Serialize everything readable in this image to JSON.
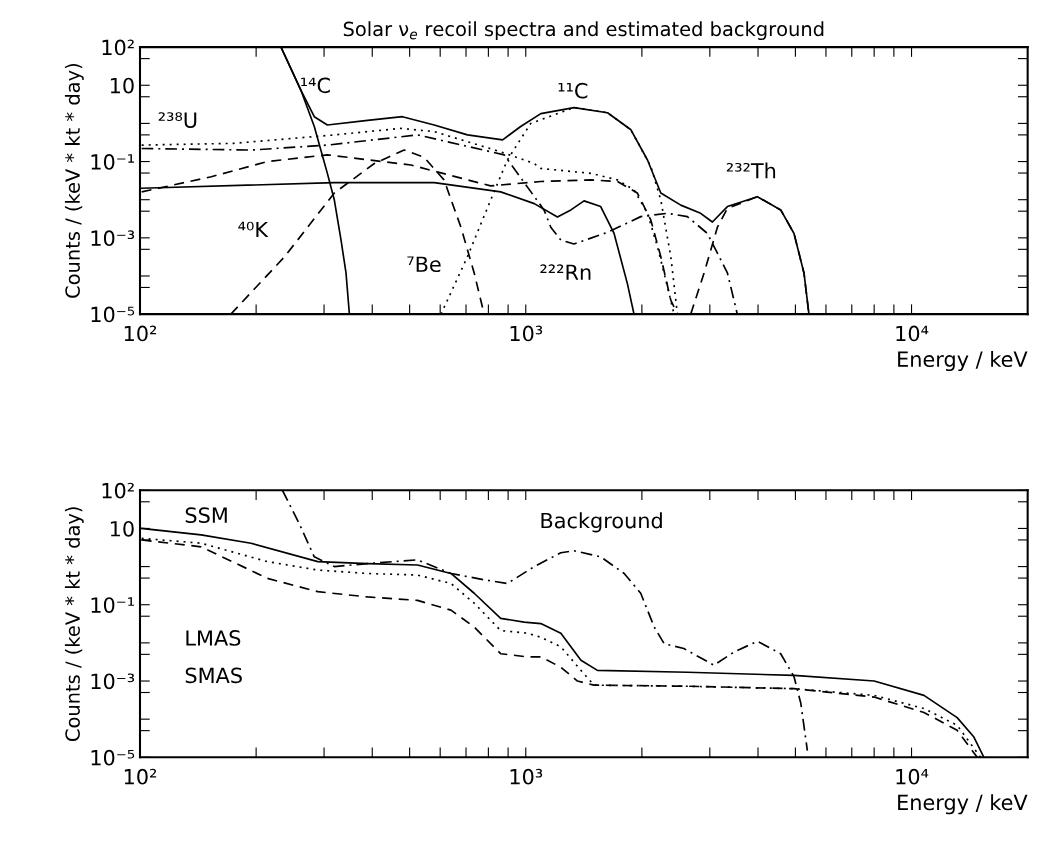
{
  "chart_data": [
    {
      "type": "line",
      "title": "Solar ν$_{e}$ recoil spectra and estimated background",
      "xlabel": "Energy / keV",
      "ylabel": "Counts / (keV * kt * day)",
      "log": "xy",
      "xlim": [
        100,
        20000
      ],
      "ylim": [
        1e-05,
        100
      ],
      "xticks": [
        {
          "value": 100,
          "label": "10²"
        },
        {
          "value": 200,
          "label": null
        },
        {
          "value": 300,
          "label": null
        },
        {
          "value": 400,
          "label": null
        },
        {
          "value": 500,
          "label": null
        },
        {
          "value": 600,
          "label": null
        },
        {
          "value": 700,
          "label": null
        },
        {
          "value": 800,
          "label": null
        },
        {
          "value": 900,
          "label": null
        },
        {
          "value": 1000,
          "label": "10³"
        },
        {
          "value": 2000,
          "label": null
        },
        {
          "value": 3000,
          "label": null
        },
        {
          "value": 4000,
          "label": null
        },
        {
          "value": 5000,
          "label": null
        },
        {
          "value": 6000,
          "label": null
        },
        {
          "value": 7000,
          "label": null
        },
        {
          "value": 8000,
          "label": null
        },
        {
          "value": 9000,
          "label": null
        },
        {
          "value": 10000,
          "label": "10⁴"
        }
      ],
      "yticks": [
        {
          "value": 1e-05,
          "label": "10⁻⁵"
        },
        {
          "value": 5e-05,
          "label": null
        },
        {
          "value": 0.0001,
          "label": null
        },
        {
          "value": 0.0005,
          "label": null
        },
        {
          "value": 0.001,
          "label": "10⁻³"
        },
        {
          "value": 0.005,
          "label": null
        },
        {
          "value": 0.01,
          "label": null
        },
        {
          "value": 0.05,
          "label": null
        },
        {
          "value": 0.1,
          "label": "10⁻¹"
        },
        {
          "value": 0.5,
          "label": null
        },
        {
          "value": 1,
          "label": null
        },
        {
          "value": 5,
          "label": null
        },
        {
          "value": 10,
          "label": "10"
        },
        {
          "value": 50,
          "label": null
        },
        {
          "value": 100,
          "label": "10²"
        }
      ],
      "series": [
        {
          "color": "#000000",
          "line_style": "solid",
          "x": [
            232,
            261,
            283,
            306,
            319,
            332,
            342,
            349
          ],
          "values": [
            100,
            7.6,
            0.83,
            0.049,
            0.0098,
            0.00087,
            0.00012,
            1e-05
          ]
        },
        {
          "color": "#000000",
          "line_style": "solid",
          "x": [
            232,
            261,
            283,
            306,
            389,
            479,
            579,
            706,
            871,
            970,
            1094,
            1334,
            1629,
            1873,
            2068,
            2239,
            2522,
            2840,
            3046,
            3332,
            3985,
            4580,
            4958,
            5262,
            5420
          ],
          "values": [
            100,
            7.6,
            1.5,
            0.91,
            1.2,
            1.5,
            0.91,
            0.5,
            0.37,
            0.83,
            1.8,
            2.6,
            1.9,
            0.68,
            0.11,
            0.015,
            0.0072,
            0.0044,
            0.0026,
            0.0066,
            0.012,
            0.0054,
            0.0013,
            0.00012,
            1e-05
          ]
        },
        {
          "color": "#000000",
          "line_style": "dotted",
          "x": [
            603,
            706,
            811,
            896,
            1030,
            1334,
            1629,
            1873,
            2110,
            2239,
            2377,
            2472
          ],
          "values": [
            1e-05,
            0.00032,
            0.0098,
            0.11,
            1.0,
            2.6,
            1.9,
            0.68,
            0.074,
            0.0098,
            0.00032,
            1e-05
          ]
        },
        {
          "color": "#000000",
          "line_style": "dotted",
          "x": [
            101,
            175,
            319,
            474,
            579,
            861,
            1052,
            1094,
            1476,
            1729,
            1908,
            2068,
            2194,
            2330,
            2423
          ],
          "values": [
            0.27,
            0.3,
            0.5,
            0.74,
            0.61,
            0.18,
            0.089,
            0.066,
            0.049,
            0.033,
            0.018,
            0.0044,
            0.00059,
            5.2e-05,
            1e-05
          ]
        },
        {
          "color": "#000000",
          "line_style": "dashdot",
          "x": [
            101,
            194,
            306,
            524,
            706,
            879,
            1115,
            1161,
            1233,
            1334,
            1629,
            1986,
            2330,
            2624,
            2958,
            3332,
            3535
          ],
          "values": [
            0.22,
            0.2,
            0.27,
            0.5,
            0.25,
            0.15,
            0.0054,
            0.0019,
            0.00087,
            0.00069,
            0.0014,
            0.0036,
            0.0044,
            0.0036,
            0.0013,
            0.00012,
            1e-05
          ]
        },
        {
          "color": "#000000",
          "line_style": "dashed",
          "x": [
            101,
            153,
            214,
            306,
            504,
            811,
            1094,
            1476,
            1729,
            1946,
            2110,
            2239,
            2377,
            2472
          ],
          "values": [
            0.016,
            0.04,
            0.1,
            0.15,
            0.081,
            0.023,
            0.03,
            0.033,
            0.03,
            0.015,
            0.0029,
            0.00032,
            2.3e-05,
            1e-05
          ]
        },
        {
          "color": "#000000",
          "line_style": "solid",
          "x": [
            101,
            319,
            579,
            861,
            1052,
            1208,
            1309,
            1416,
            1564,
            1694,
            1834,
            1908
          ],
          "values": [
            0.02,
            0.028,
            0.028,
            0.016,
            0.0079,
            0.0035,
            0.0054,
            0.0093,
            0.0066,
            0.0013,
            6.3e-05,
            1e-05
          ]
        },
        {
          "color": "#000000",
          "line_style": "dashed",
          "x": [
            172,
            237,
            319,
            405,
            484,
            545,
            614,
            679,
            735,
            780
          ],
          "values": [
            1e-05,
            0.00032,
            0.015,
            0.089,
            0.2,
            0.13,
            0.033,
            0.0019,
            0.00012,
            1e-05
          ]
        },
        {
          "color": "#000000",
          "line_style": "dashed",
          "x": [
            2677,
            2899,
            3139,
            3332,
            3985,
            4580,
            4958,
            5262,
            5420
          ],
          "values": [
            1e-05,
            0.00012,
            0.0019,
            0.0059,
            0.012,
            0.0054,
            0.0013,
            0.00012,
            1e-05
          ]
        }
      ],
      "annotations": [
        "¹⁴C",
        "²³⁸U",
        "⁴⁰K",
        "⁷Be",
        "²²²Rn",
        "¹¹C",
        "²³²Th"
      ]
    },
    {
      "type": "line",
      "xlabel": "Energy / keV",
      "ylabel": "Counts / (keV * kt * day)",
      "log": "xy",
      "xlim": [
        100,
        20000
      ],
      "ylim": [
        1e-05,
        100
      ],
      "xticks": [
        {
          "value": 100,
          "label": "10²"
        },
        {
          "value": 200,
          "label": null
        },
        {
          "value": 300,
          "label": null
        },
        {
          "value": 400,
          "label": null
        },
        {
          "value": 500,
          "label": null
        },
        {
          "value": 600,
          "label": null
        },
        {
          "value": 700,
          "label": null
        },
        {
          "value": 800,
          "label": null
        },
        {
          "value": 900,
          "label": null
        },
        {
          "value": 1000,
          "label": "10³"
        },
        {
          "value": 2000,
          "label": null
        },
        {
          "value": 3000,
          "label": null
        },
        {
          "value": 4000,
          "label": null
        },
        {
          "value": 5000,
          "label": null
        },
        {
          "value": 6000,
          "label": null
        },
        {
          "value": 7000,
          "label": null
        },
        {
          "value": 8000,
          "label": null
        },
        {
          "value": 9000,
          "label": null
        },
        {
          "value": 10000,
          "label": "10⁴"
        }
      ],
      "yticks": [
        {
          "value": 1e-05,
          "label": "10⁻⁵"
        },
        {
          "value": 5e-05,
          "label": null
        },
        {
          "value": 0.0001,
          "label": null
        },
        {
          "value": 0.0005,
          "label": null
        },
        {
          "value": 0.001,
          "label": "10⁻³"
        },
        {
          "value": 0.005,
          "label": null
        },
        {
          "value": 0.01,
          "label": null
        },
        {
          "value": 0.05,
          "label": null
        },
        {
          "value": 0.1,
          "label": "10⁻¹"
        },
        {
          "value": 0.5,
          "label": null
        },
        {
          "value": 1,
          "label": null
        },
        {
          "value": 5,
          "label": null
        },
        {
          "value": 10,
          "label": "10"
        },
        {
          "value": 50,
          "label": null
        },
        {
          "value": 100,
          "label": "10²"
        }
      ],
      "series": [
        {
          "color": "#000000",
          "line_style": "solid",
          "x": [
            101,
            144,
            194,
            289,
            389,
            524,
            640,
            735,
            861,
            990,
            1094,
            1233,
            1390,
            1534,
            2624,
            4958,
            8000,
            10770,
            13130,
            14510,
            15400
          ],
          "values": [
            10,
            6.8,
            4.1,
            1.35,
            1.2,
            1.1,
            0.66,
            0.2,
            0.044,
            0.035,
            0.032,
            0.018,
            0.0035,
            0.0019,
            0.0017,
            0.0014,
            0.001,
            0.00042,
            0.00011,
            3.4e-05,
            1e-05
          ]
        },
        {
          "color": "#000000",
          "line_style": "dotted",
          "x": [
            101,
            144,
            214,
            289,
            389,
            524,
            640,
            735,
            861,
            1009,
            1094,
            1233,
            1390,
            1503,
            2624,
            4958,
            8000,
            10770,
            13130,
            15100
          ],
          "values": [
            5.5,
            4.1,
            1.35,
            0.81,
            0.66,
            0.6,
            0.36,
            0.11,
            0.021,
            0.018,
            0.014,
            0.0079,
            0.0019,
            0.00078,
            0.00073,
            0.00063,
            0.00042,
            0.00019,
            6.9e-05,
            1e-05
          ]
        },
        {
          "color": "#000000",
          "line_style": "dashed",
          "x": [
            101,
            144,
            214,
            289,
            389,
            524,
            640,
            735,
            861,
            1009,
            1094,
            1233,
            1361,
            1503,
            2624,
            4958,
            8000,
            10770,
            13130,
            14800
          ],
          "values": [
            5.0,
            3.3,
            0.49,
            0.22,
            0.16,
            0.13,
            0.072,
            0.026,
            0.0052,
            0.0043,
            0.0043,
            0.0023,
            0.001,
            0.00078,
            0.00073,
            0.00063,
            0.00038,
            0.00015,
            5.1e-05,
            1e-05
          ]
        },
        {
          "color": "#000000",
          "line_style": "dashdot",
          "x": [
            234,
            259,
            283,
            319,
            389,
            524,
            640,
            780,
            896,
            1052,
            1233,
            1334,
            1564,
            1799,
            1986,
            2153,
            2285,
            2569,
            3076,
            3470,
            3985,
            4580,
            4958,
            5164,
            5370
          ],
          "values": [
            100,
            13,
            1.8,
            1.0,
            1.2,
            1.5,
            0.66,
            0.45,
            0.36,
            1.0,
            2.3,
            2.6,
            1.8,
            0.66,
            0.2,
            0.026,
            0.0095,
            0.0071,
            0.0026,
            0.0058,
            0.011,
            0.0052,
            0.0013,
            0.00026,
            1.5e-05
          ]
        }
      ],
      "annotations": [
        "SSM",
        "Background",
        "LMAS",
        "SMAS"
      ]
    }
  ]
}
